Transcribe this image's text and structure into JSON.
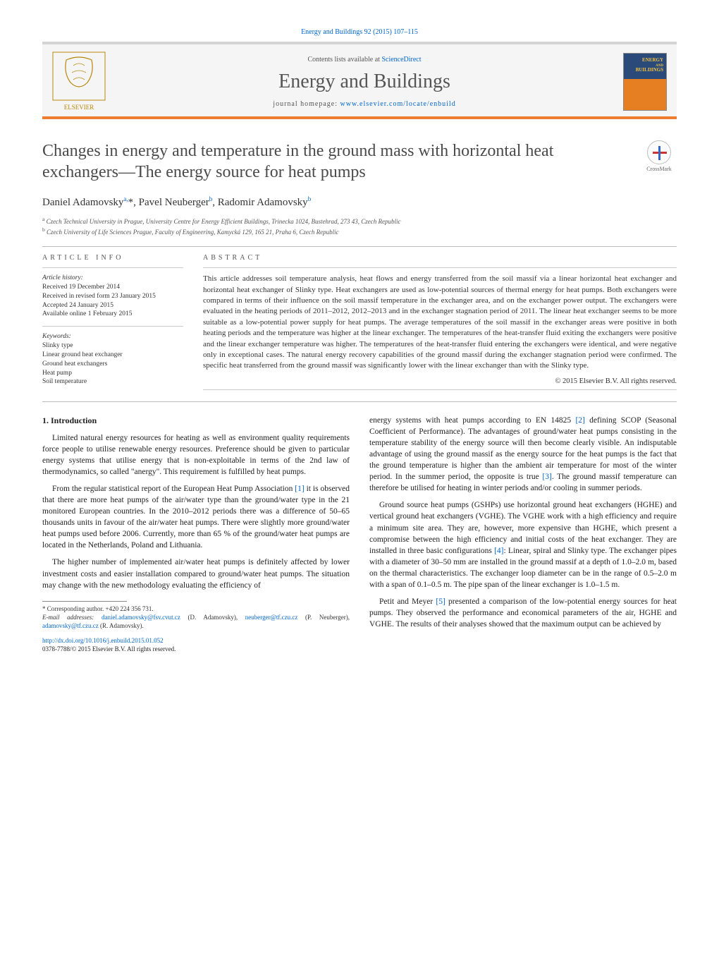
{
  "citation": "Energy and Buildings 92 (2015) 107–115",
  "header": {
    "contents_prefix": "Contents lists available at ",
    "contents_link": "ScienceDirect",
    "journal": "Energy and Buildings",
    "homepage_prefix": "journal homepage: ",
    "homepage_link": "www.elsevier.com/locate/enbuild",
    "cover_label": "ENERGY\nBUILDINGS",
    "publisher": "ELSEVIER"
  },
  "crossmark": "CrossMark",
  "title": "Changes in energy and temperature in the ground mass with horizontal heat exchangers—The energy source for heat pumps",
  "authors_html": "Daniel Adamovsky<sup>a,</sup>*, Pavel Neuberger<sup>b</sup>, Radomir Adamovsky<sup>b</sup>",
  "affiliations": [
    "a Czech Technical University in Prague, University Centre for Energy Efficient Buildings, Trinecka 1024, Bustehrad, 273 43, Czech Republic",
    "b Czech University of Life Sciences Prague, Faculty of Engineering, Kamycká 129, 165 21, Praha 6, Czech Republic"
  ],
  "info": {
    "label": "ARTICLE INFO",
    "history_label": "Article history:",
    "history": [
      "Received 19 December 2014",
      "Received in revised form 23 January 2015",
      "Accepted 24 January 2015",
      "Available online 1 February 2015"
    ],
    "keywords_label": "Keywords:",
    "keywords": [
      "Slinky type",
      "Linear ground heat exchanger",
      "Ground heat exchangers",
      "Heat pump",
      "Soil temperature"
    ]
  },
  "abstract": {
    "label": "ABSTRACT",
    "text": "This article addresses soil temperature analysis, heat flows and energy transferred from the soil massif via a linear horizontal heat exchanger and horizontal heat exchanger of Slinky type. Heat exchangers are used as low-potential sources of thermal energy for heat pumps. Both exchangers were compared in terms of their influence on the soil massif temperature in the exchanger area, and on the exchanger power output. The exchangers were evaluated in the heating periods of 2011–2012, 2012–2013 and in the exchanger stagnation period of 2011. The linear heat exchanger seems to be more suitable as a low-potential power supply for heat pumps. The average temperatures of the soil massif in the exchanger areas were positive in both heating periods and the temperature was higher at the linear exchanger. The temperatures of the heat-transfer fluid exiting the exchangers were positive and the linear exchanger temperature was higher. The temperatures of the heat-transfer fluid entering the exchangers were identical, and were negative only in exceptional cases. The natural energy recovery capabilities of the ground massif during the exchanger stagnation period were confirmed. The specific heat transferred from the ground massif was significantly lower with the linear exchanger than with the Slinky type.",
    "copyright": "© 2015 Elsevier B.V. All rights reserved."
  },
  "body": {
    "section_heading": "1.  Introduction",
    "left": [
      "Limited natural energy resources for heating as well as environment quality requirements force people to utilise renewable energy resources. Preference should be given to particular energy systems that utilise energy that is non-exploitable in terms of the 2nd law of thermodynamics, so called \"anergy\". This requirement is fulfilled by heat pumps.",
      "From the regular statistical report of the European Heat Pump Association [1] it is observed that there are more heat pumps of the air/water type than the ground/water type in the 21 monitored European countries. In the 2010–2012 periods there was a difference of 50–65 thousands units in favour of the air/water heat pumps. There were slightly more ground/water heat pumps used before 2006. Currently, more than 65 % of the ground/water heat pumps are located in the Netherlands, Poland and Lithuania.",
      "The higher number of implemented air/water heat pumps is definitely affected by lower investment costs and easier installation compared to ground/water heat pumps. The situation may change with the new methodology evaluating the efficiency of"
    ],
    "right": [
      "energy systems with heat pumps according to EN 14825 [2] defining SCOP (Seasonal Coefficient of Performance). The advantages of ground/water heat pumps consisting in the temperature stability of the energy source will then become clearly visible. An indisputable advantage of using the ground massif as the energy source for the heat pumps is the fact that the ground temperature is higher than the ambient air temperature for most of the winter period. In the summer period, the opposite is true [3]. The ground massif temperature can therefore be utilised for heating in winter periods and/or cooling in summer periods.",
      "Ground source heat pumps (GSHPs) use horizontal ground heat exchangers (HGHE) and vertical ground heat exchangers (VGHE). The VGHE work with a high efficiency and require a minimum site area. They are, however, more expensive than HGHE, which present a compromise between the high efficiency and initial costs of the heat exchanger. They are installed in three basic configurations [4]: Linear, spiral and Slinky type. The exchanger pipes with a diameter of 30–50 mm are installed in the ground massif at a depth of 1.0–2.0 m, based on the thermal characteristics. The exchanger loop diameter can be in the range of 0.5–2.0 m with a span of 0.1–0.5 m. The pipe span of the linear exchanger is 1.0–1.5 m.",
      "Petit and Meyer [5] presented a comparison of the low-potential energy sources for heat pumps. They observed the performance and economical parameters of the air, HGHE and VGHE. The results of their analyses showed that the maximum output can be achieved by"
    ]
  },
  "footnotes": {
    "corresponding": "* Corresponding author. +420 224 356 731.",
    "email_label": "E-mail addresses: ",
    "emails": [
      {
        "addr": "daniel.adamovsky@fsv.cvut.cz",
        "who": "(D. Adamovsky)"
      },
      {
        "addr": "neuberger@tf.czu.cz",
        "who": "(P. Neuberger)"
      },
      {
        "addr": "adamovsky@tf.czu.cz",
        "who": "(R. Adamovsky)"
      }
    ]
  },
  "doi": {
    "url": "http://dx.doi.org/10.1016/j.enbuild.2015.01.052",
    "issn_line": "0378-7788/© 2015 Elsevier B.V. All rights reserved."
  },
  "colors": {
    "accent": "#ed7d31",
    "link": "#0066cc",
    "header_bg": "#f5f5f5",
    "text": "#333333"
  }
}
